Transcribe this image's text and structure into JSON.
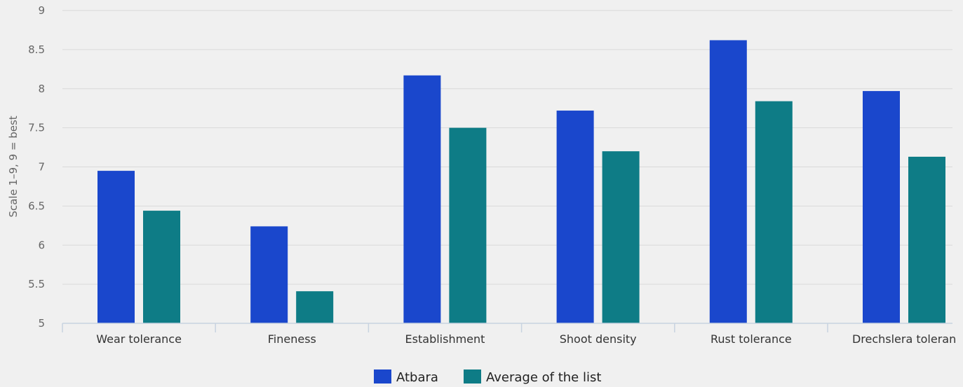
{
  "chart_data": {
    "type": "bar",
    "ylabel": "Scale 1–9, 9 = best",
    "ylim": [
      5,
      9
    ],
    "yticks": [
      "5",
      "5.5",
      "6",
      "6.5",
      "7",
      "7.5",
      "8",
      "8.5",
      "9"
    ],
    "grid": true,
    "legend_position": "bottom-center",
    "categories": [
      "Wear tolerance",
      "Fineness",
      "Establishment",
      "Shoot density",
      "Rust tolerance",
      "Drechslera toleran"
    ],
    "series": [
      {
        "name": "Atbara",
        "color": "#1a47cc",
        "values": [
          6.95,
          6.24,
          8.17,
          7.72,
          8.62,
          7.97
        ]
      },
      {
        "name": "Average of the list",
        "color": "#0e7c86",
        "values": [
          6.44,
          5.41,
          7.5,
          7.2,
          7.84,
          7.13
        ]
      }
    ]
  }
}
